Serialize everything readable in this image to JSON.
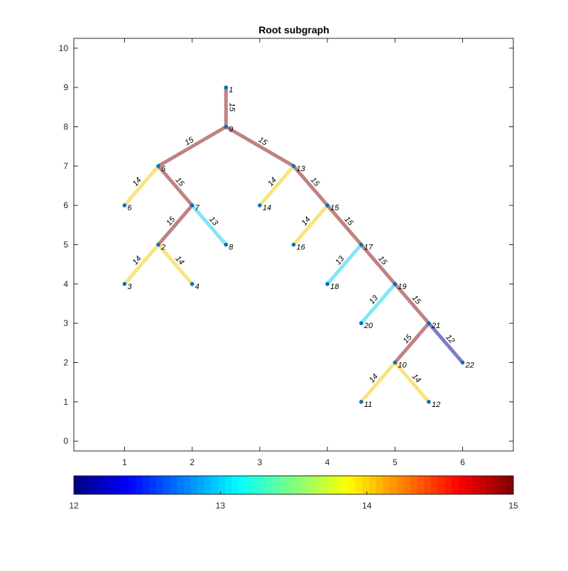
{
  "chart_data": {
    "type": "graph",
    "title": "Root subgraph",
    "xlim": [
      0.25,
      6.75
    ],
    "ylim": [
      -0.25,
      10.25
    ],
    "xticks": [
      1,
      2,
      3,
      4,
      5,
      6
    ],
    "yticks": [
      0,
      1,
      2,
      3,
      4,
      5,
      6,
      7,
      8,
      9,
      10
    ],
    "grid": false,
    "nodes": [
      {
        "id": "1",
        "x": 2.5,
        "y": 9
      },
      {
        "id": "9",
        "x": 2.5,
        "y": 8
      },
      {
        "id": "5",
        "x": 1.5,
        "y": 7
      },
      {
        "id": "13",
        "x": 3.5,
        "y": 7
      },
      {
        "id": "6",
        "x": 1.0,
        "y": 6
      },
      {
        "id": "7",
        "x": 2.0,
        "y": 6
      },
      {
        "id": "14",
        "x": 3.0,
        "y": 6
      },
      {
        "id": "15",
        "x": 4.0,
        "y": 6
      },
      {
        "id": "2",
        "x": 1.5,
        "y": 5
      },
      {
        "id": "8",
        "x": 2.5,
        "y": 5
      },
      {
        "id": "16",
        "x": 3.5,
        "y": 5
      },
      {
        "id": "17",
        "x": 4.5,
        "y": 5
      },
      {
        "id": "3",
        "x": 1.0,
        "y": 4
      },
      {
        "id": "4",
        "x": 2.0,
        "y": 4
      },
      {
        "id": "18",
        "x": 4.0,
        "y": 4
      },
      {
        "id": "19",
        "x": 5.0,
        "y": 4
      },
      {
        "id": "20",
        "x": 4.5,
        "y": 3
      },
      {
        "id": "21",
        "x": 5.5,
        "y": 3
      },
      {
        "id": "10",
        "x": 5.0,
        "y": 2
      },
      {
        "id": "22",
        "x": 6.0,
        "y": 2
      },
      {
        "id": "11",
        "x": 4.5,
        "y": 1
      },
      {
        "id": "12",
        "x": 5.5,
        "y": 1
      }
    ],
    "edges": [
      {
        "from": "1",
        "to": "9",
        "weight": 15
      },
      {
        "from": "9",
        "to": "5",
        "weight": 15
      },
      {
        "from": "9",
        "to": "13",
        "weight": 15
      },
      {
        "from": "5",
        "to": "6",
        "weight": 14
      },
      {
        "from": "5",
        "to": "7",
        "weight": 15
      },
      {
        "from": "7",
        "to": "2",
        "weight": 15
      },
      {
        "from": "7",
        "to": "8",
        "weight": 13
      },
      {
        "from": "2",
        "to": "3",
        "weight": 14
      },
      {
        "from": "2",
        "to": "4",
        "weight": 14
      },
      {
        "from": "13",
        "to": "14",
        "weight": 14
      },
      {
        "from": "13",
        "to": "15",
        "weight": 15
      },
      {
        "from": "15",
        "to": "16",
        "weight": 14
      },
      {
        "from": "15",
        "to": "17",
        "weight": 15
      },
      {
        "from": "17",
        "to": "18",
        "weight": 13
      },
      {
        "from": "17",
        "to": "19",
        "weight": 15
      },
      {
        "from": "19",
        "to": "20",
        "weight": 13
      },
      {
        "from": "19",
        "to": "21",
        "weight": 15
      },
      {
        "from": "21",
        "to": "10",
        "weight": 15
      },
      {
        "from": "21",
        "to": "22",
        "weight": 12
      },
      {
        "from": "10",
        "to": "11",
        "weight": 14
      },
      {
        "from": "10",
        "to": "12",
        "weight": 14
      }
    ],
    "edge_colors": {
      "12": "#7a7fc4",
      "13": "#7fe8f4",
      "14": "#fbe37e",
      "15": "#c08282"
    },
    "node_color": "#0072bd",
    "colorbar": {
      "location": "bottom",
      "colormap": "jet",
      "ticks": [
        12,
        13,
        14,
        15
      ],
      "limits": [
        12,
        15
      ]
    }
  }
}
